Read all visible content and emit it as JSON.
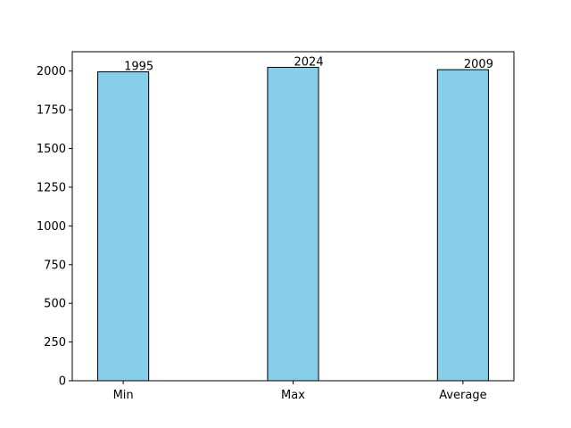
{
  "chart_data": {
    "type": "bar",
    "title": "",
    "xlabel": "",
    "ylabel": "",
    "categories": [
      "Min",
      "Max",
      "Average"
    ],
    "values": [
      1995,
      2024,
      2009
    ],
    "value_labels": [
      "1995",
      "2024",
      "2009"
    ],
    "ylim": [
      0,
      2125
    ],
    "yticks": [
      0,
      250,
      500,
      750,
      1000,
      1250,
      1500,
      1750,
      2000
    ],
    "ytick_labels": [
      "0",
      "250",
      "500",
      "750",
      "1000",
      "1250",
      "1500",
      "1750",
      "2000"
    ],
    "grid": false,
    "legend": "none",
    "bar_color": "#87ceeb",
    "bar_edge_color": "#000000"
  }
}
